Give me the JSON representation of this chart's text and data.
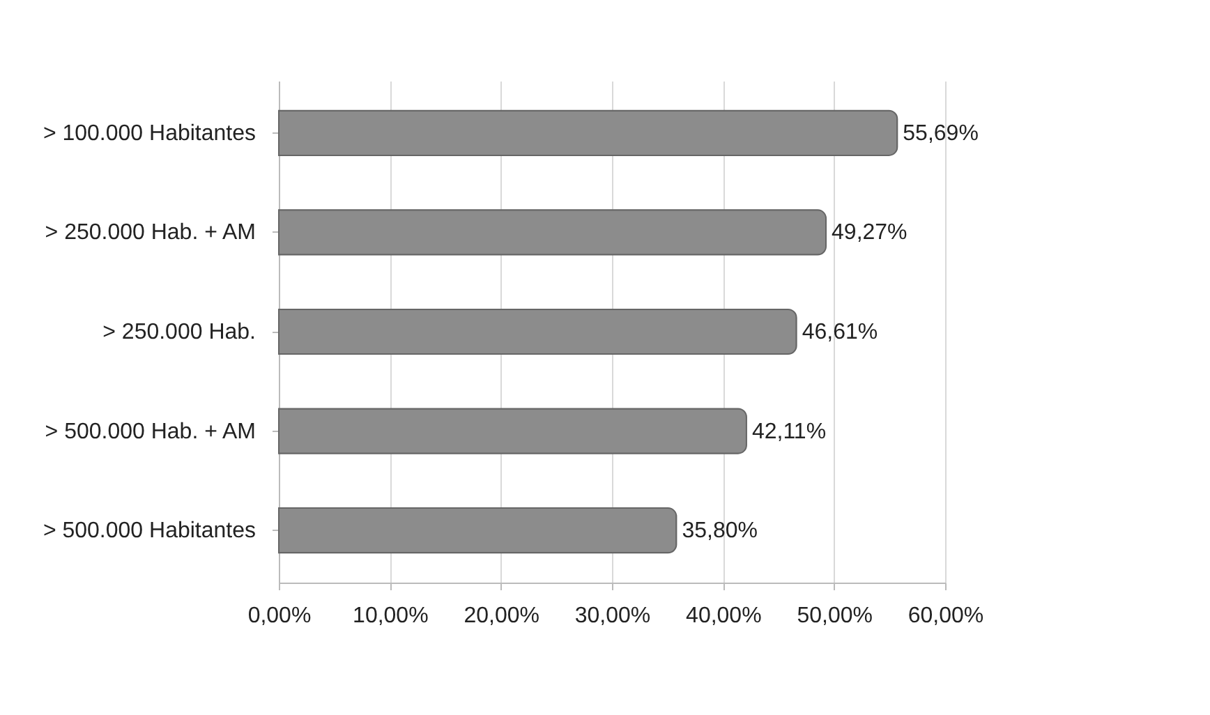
{
  "chart_data": {
    "type": "bar",
    "orientation": "horizontal",
    "categories": [
      "> 100.000 Habitantes",
      "> 250.000 Hab. + AM",
      "> 250.000 Hab.",
      "> 500.000 Hab. + AM",
      "> 500.000 Habitantes"
    ],
    "values": [
      55.69,
      49.27,
      46.61,
      42.11,
      35.8
    ],
    "value_labels": [
      "55,69%",
      "49,27%",
      "46,61%",
      "42,11%",
      "35,80%"
    ],
    "color": "#8c8c8c",
    "xlim": [
      0,
      60
    ],
    "xticks": [
      {
        "value": 0,
        "label": "0,00%"
      },
      {
        "value": 10,
        "label": "10,00%"
      },
      {
        "value": 20,
        "label": "20,00%"
      },
      {
        "value": 30,
        "label": "30,00%"
      },
      {
        "value": 40,
        "label": "40,00%"
      },
      {
        "value": 50,
        "label": "50,00%"
      },
      {
        "value": 60,
        "label": "60,00%"
      }
    ],
    "grid": "x"
  }
}
